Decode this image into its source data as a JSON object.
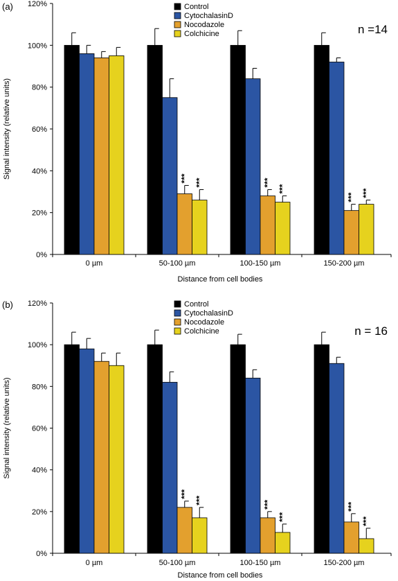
{
  "chart_data": [
    {
      "type": "bar",
      "panel_label": "(a)",
      "n_label": "n =14",
      "xlabel": "Distance from cell bodies",
      "ylabel": "Signal intensity (relative units)",
      "ylim": [
        0,
        120
      ],
      "yticks": [
        "0%",
        "20%",
        "40%",
        "60%",
        "80%",
        "100%",
        "120%"
      ],
      "categories": [
        "0 µm",
        "50-100 µm",
        "100-150 µm",
        "150-200 µm"
      ],
      "legend_position": "top-center",
      "series": [
        {
          "name": "Control",
          "color": "#000000",
          "values": [
            100,
            100,
            100,
            100
          ],
          "errors": [
            6,
            8,
            7,
            6
          ],
          "annotations": [
            "",
            "",
            "",
            ""
          ]
        },
        {
          "name": "CytochalasinD",
          "color": "#2b55a3",
          "values": [
            96,
            75,
            84,
            92
          ],
          "errors": [
            4,
            9,
            5,
            2
          ],
          "annotations": [
            "",
            "",
            "",
            ""
          ]
        },
        {
          "name": "Nocodazole",
          "color": "#e3a02e",
          "values": [
            94,
            29,
            28,
            21
          ],
          "errors": [
            3,
            4,
            3,
            3
          ],
          "annotations": [
            "",
            "***",
            "***",
            "***"
          ]
        },
        {
          "name": "Colchicine",
          "color": "#e6d21e",
          "values": [
            95,
            26,
            25,
            24
          ],
          "errors": [
            4,
            5,
            3,
            2
          ],
          "annotations": [
            "",
            "***",
            "***",
            "***"
          ]
        }
      ]
    },
    {
      "type": "bar",
      "panel_label": "(b)",
      "n_label": "n = 16",
      "xlabel": "Distance from cell bodies",
      "ylabel": "Signal intensity (relative units)",
      "ylim": [
        0,
        120
      ],
      "yticks": [
        "0%",
        "20%",
        "40%",
        "60%",
        "80%",
        "100%",
        "120%"
      ],
      "categories": [
        "0 µm",
        "50-100 µm",
        "100-150 µm",
        "150-200 µm"
      ],
      "legend_position": "top-center",
      "series": [
        {
          "name": "Control",
          "color": "#000000",
          "values": [
            100,
            100,
            100,
            100
          ],
          "errors": [
            6,
            7,
            5,
            6
          ],
          "annotations": [
            "",
            "",
            "",
            ""
          ]
        },
        {
          "name": "CytochalasinD",
          "color": "#2b55a3",
          "values": [
            98,
            82,
            84,
            91
          ],
          "errors": [
            5,
            5,
            4,
            3
          ],
          "annotations": [
            "",
            "",
            "",
            ""
          ]
        },
        {
          "name": "Nocodazole",
          "color": "#e3a02e",
          "values": [
            92,
            22,
            17,
            15
          ],
          "errors": [
            4,
            3,
            3,
            4
          ],
          "annotations": [
            "",
            "***",
            "***",
            "***"
          ]
        },
        {
          "name": "Colchicine",
          "color": "#e6d21e",
          "values": [
            90,
            17,
            10,
            7
          ],
          "errors": [
            6,
            5,
            4,
            5
          ],
          "annotations": [
            "",
            "***",
            "***",
            "***"
          ]
        }
      ]
    }
  ]
}
